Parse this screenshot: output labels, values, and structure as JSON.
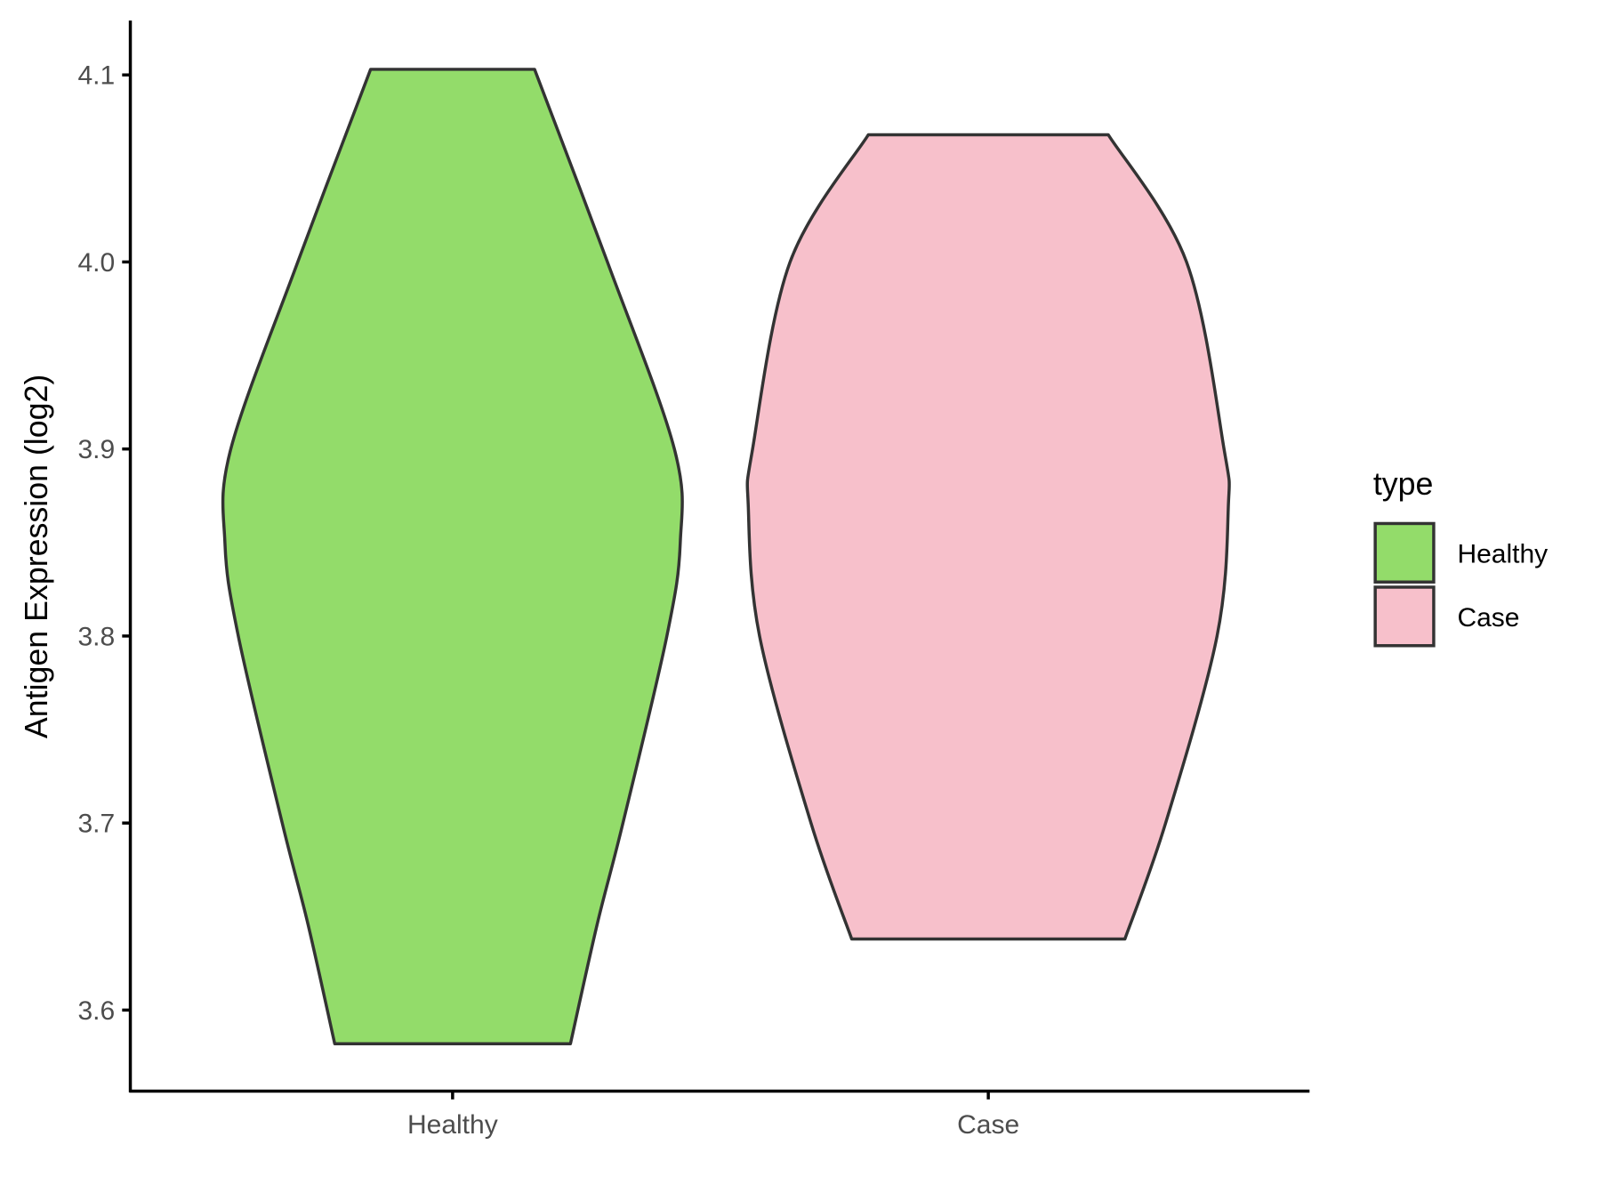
{
  "chart_data": {
    "type": "violin",
    "title": "",
    "xlabel": "",
    "ylabel": "Antigen Expression (log2)",
    "categories": [
      "Healthy",
      "Case"
    ],
    "yticks": [
      3.6,
      3.7,
      3.8,
      3.9,
      4.0,
      4.1
    ],
    "ytick_labels": [
      "3.6",
      "3.7",
      "3.8",
      "3.9",
      "4.0",
      "4.1"
    ],
    "ylim": [
      3.555,
      4.13
    ],
    "grid": false,
    "legend": {
      "title": "type",
      "placement": "right",
      "entries": [
        "Healthy",
        "Case"
      ]
    },
    "series": [
      {
        "name": "Healthy",
        "color": "#93DC6A",
        "min": 3.582,
        "max": 4.103,
        "profile_y": [
          3.582,
          3.646,
          3.7,
          3.8,
          3.85,
          3.9,
          4.0,
          4.103
        ],
        "profile_halfwidth": [
          0.22,
          0.27,
          0.318,
          0.4,
          0.425,
          0.414,
          0.289,
          0.153
        ]
      },
      {
        "name": "Case",
        "color": "#F7C0CB",
        "min": 3.638,
        "max": 4.068,
        "profile_y": [
          3.638,
          3.7,
          3.8,
          3.869,
          3.9,
          4.0,
          4.068
        ],
        "profile_halfwidth": [
          0.255,
          0.331,
          0.427,
          0.448,
          0.44,
          0.37,
          0.224
        ]
      }
    ],
    "outline_color": "#333333"
  }
}
